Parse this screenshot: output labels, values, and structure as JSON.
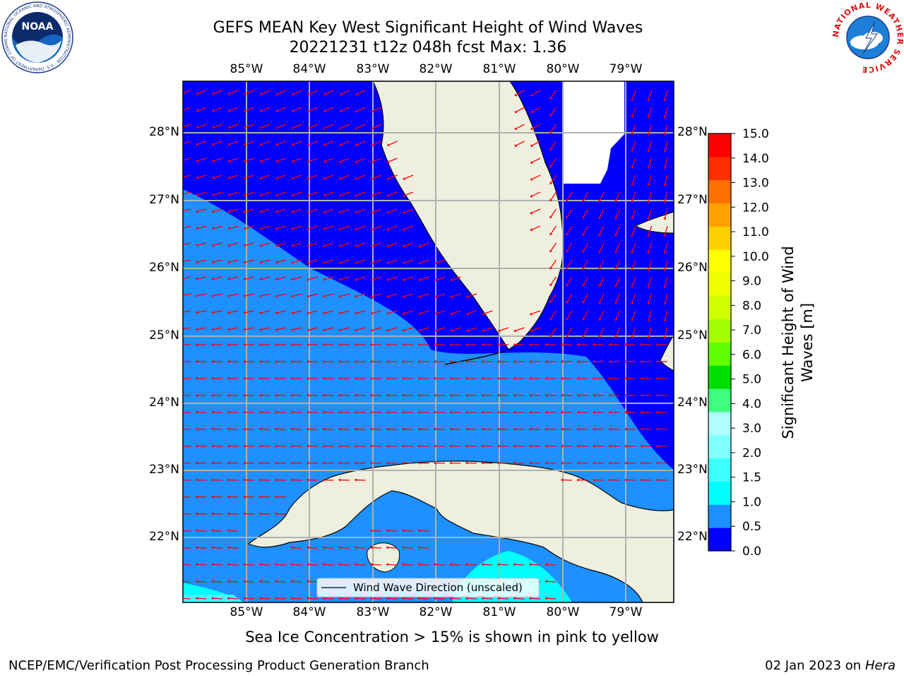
{
  "header": {
    "title_line1": "GEFS MEAN Key West Significant Height of Wind Waves",
    "title_line2": "20221231 t12z 048h fcst   Max: 1.36"
  },
  "logos": {
    "left": {
      "text": "NOAA",
      "ring_text": "NATIONAL OCEANIC AND ATMOSPHERIC ADMINISTRATION · U.S. DEPARTMENT OF COMMERCE"
    },
    "right": {
      "ring_text": "NATIONAL WEATHER SERVICE"
    }
  },
  "map": {
    "lon_labels": [
      "85°W",
      "84°W",
      "83°W",
      "82°W",
      "81°W",
      "80°W",
      "79°W"
    ],
    "lat_labels": [
      "28°N",
      "27°N",
      "26°N",
      "25°N",
      "24°N",
      "23°N",
      "22°N"
    ],
    "legend_label": "Wind Wave Direction (unscaled)",
    "colors": {
      "land": "#efefdf",
      "deep_blue": "#0000ff",
      "mid_blue": "#1e90ff",
      "cyan": "#00ffff",
      "arrow": "#ff0000",
      "grid": "#b0b0b0"
    }
  },
  "colorbar": {
    "label": "Significant Height of Wind Waves [m]",
    "label_line1": "Significant Height of Wind",
    "label_line2": "Waves [m]",
    "ticks": [
      "0.0",
      "0.5",
      "1.0",
      "1.5",
      "2.0",
      "3.0",
      "4.0",
      "5.0",
      "6.0",
      "7.0",
      "8.0",
      "9.0",
      "10.0",
      "11.0",
      "12.0",
      "13.0",
      "14.0",
      "15.0"
    ],
    "colors": [
      "#0000ff",
      "#1e90ff",
      "#00ffff",
      "#40ffff",
      "#80ffff",
      "#b0ffff",
      "#40ff80",
      "#00e000",
      "#60ff00",
      "#a0ff00",
      "#d0ff00",
      "#f0ff00",
      "#ffff00",
      "#ffd000",
      "#ffa000",
      "#ff7000",
      "#ff3000",
      "#ff0000"
    ]
  },
  "notes": {
    "sea_ice": "Sea Ice Concentration > 15% is shown in pink to yellow"
  },
  "footer": {
    "left": "NCEP/EMC/Verification Post Processing Product Generation Branch",
    "date": "02 Jan 2023 on ",
    "machine": "Hera"
  }
}
